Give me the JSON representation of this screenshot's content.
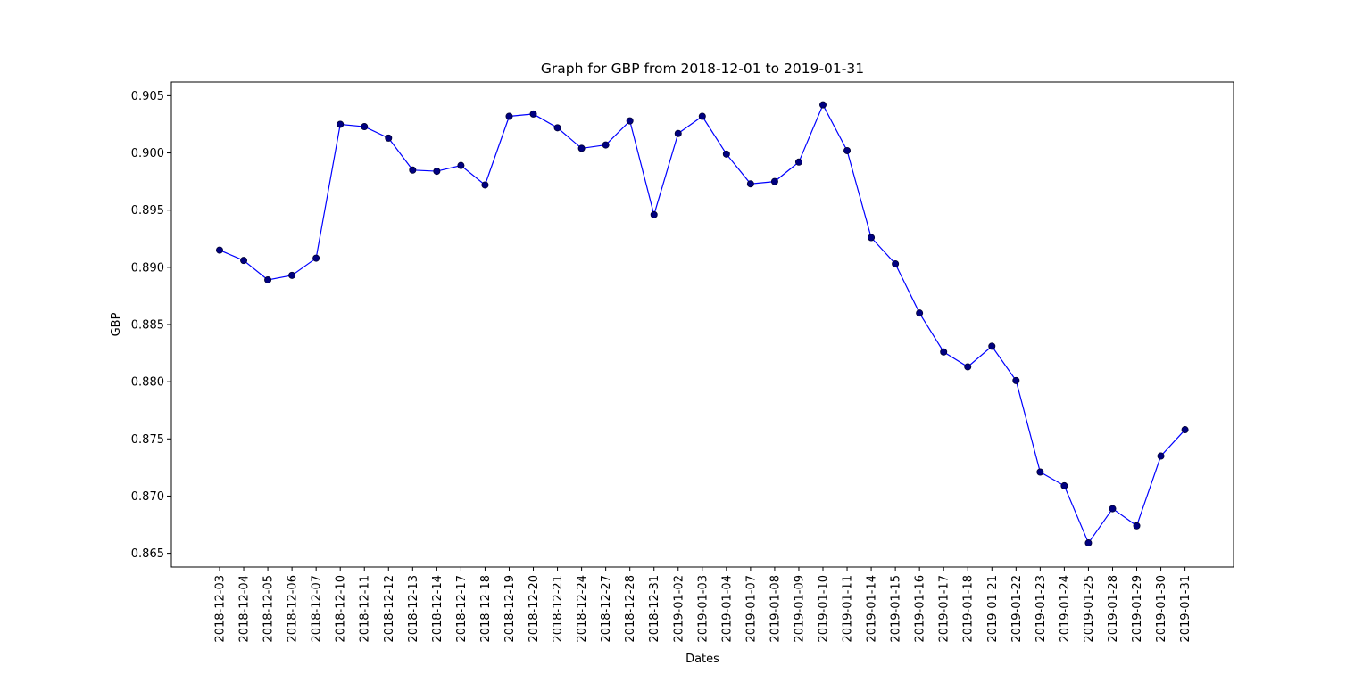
{
  "chart_data": {
    "type": "line",
    "title": "Graph for GBP from 2018-12-01 to 2019-01-31",
    "xlabel": "Dates",
    "ylabel": "GBP",
    "ylim": [
      0.8638,
      0.9062
    ],
    "yticks": [
      "0.865",
      "0.870",
      "0.875",
      "0.880",
      "0.885",
      "0.890",
      "0.895",
      "0.900",
      "0.905"
    ],
    "ytick_values": [
      0.865,
      0.87,
      0.875,
      0.88,
      0.885,
      0.89,
      0.895,
      0.9,
      0.905
    ],
    "grid": false,
    "line_color": "#0000ff",
    "marker_color": "#000080",
    "categories": [
      "2018-12-03",
      "2018-12-04",
      "2018-12-05",
      "2018-12-06",
      "2018-12-07",
      "2018-12-10",
      "2018-12-11",
      "2018-12-12",
      "2018-12-13",
      "2018-12-14",
      "2018-12-17",
      "2018-12-18",
      "2018-12-19",
      "2018-12-20",
      "2018-12-21",
      "2018-12-24",
      "2018-12-27",
      "2018-12-28",
      "2018-12-31",
      "2019-01-02",
      "2019-01-03",
      "2019-01-04",
      "2019-01-07",
      "2019-01-08",
      "2019-01-09",
      "2019-01-10",
      "2019-01-11",
      "2019-01-14",
      "2019-01-15",
      "2019-01-16",
      "2019-01-17",
      "2019-01-18",
      "2019-01-21",
      "2019-01-22",
      "2019-01-23",
      "2019-01-24",
      "2019-01-25",
      "2019-01-28",
      "2019-01-29",
      "2019-01-30",
      "2019-01-31"
    ],
    "values": [
      0.8915,
      0.8906,
      0.8889,
      0.8893,
      0.8908,
      0.9025,
      0.9023,
      0.9013,
      0.8985,
      0.8984,
      0.8989,
      0.8972,
      0.9032,
      0.9034,
      0.9022,
      0.9004,
      0.9007,
      0.9028,
      0.8946,
      0.9017,
      0.9032,
      0.8999,
      0.8973,
      0.8975,
      0.8992,
      0.9042,
      0.9002,
      0.8926,
      0.8903,
      0.886,
      0.8826,
      0.8813,
      0.8831,
      0.8801,
      0.8721,
      0.8709,
      0.8659,
      0.8689,
      0.8674,
      0.8735,
      0.8758
    ]
  }
}
